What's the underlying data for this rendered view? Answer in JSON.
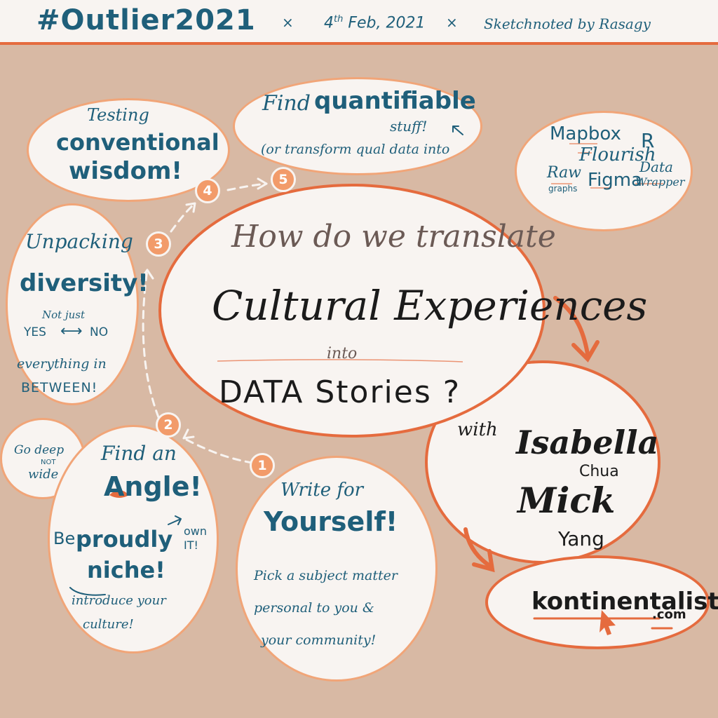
{
  "header": {
    "title": "#Outlier2021",
    "sep": "×",
    "date_day": "4",
    "date_suffix": "th",
    "date_rest": " Feb, 2021",
    "credit": "Sketchnoted by Rasagy"
  },
  "center": {
    "line1": "How do we translate",
    "line2": "Cultural Experiences",
    "line3": "into",
    "line4": "DATA Stories ?"
  },
  "steps": [
    "1",
    "2",
    "3",
    "4",
    "5"
  ],
  "testing": {
    "line1": "Testing",
    "line2": "conventional",
    "line3": "wisdom!"
  },
  "quantifiable": {
    "line1a": "Find",
    "line1b": "quantifiable",
    "line2": "stuff!",
    "line3": "(or transform qual data into"
  },
  "tools": {
    "mapbox": "Mapbox",
    "r": "R",
    "flourish": "Flourish",
    "raw": "Raw",
    "graphs": "graphs",
    "figma": "Figma",
    "data": "Data",
    "wrapper": "Wrapper"
  },
  "diversity": {
    "line1": "Unpacking",
    "line2": "diversity!",
    "line3": "Not just",
    "yes": "YES",
    "arrow": "⟷",
    "no": "NO",
    "line5": "everything in",
    "line6": "BETWEEN!"
  },
  "godeep": {
    "line1": "Go deep",
    "line2": "NOT",
    "line3": "wide"
  },
  "angle": {
    "line1": "Find an",
    "line2": "Angle!",
    "line3a": "Be",
    "line3b": "proudly",
    "line4": "niche!",
    "own1": "own",
    "own2": "IT!",
    "intro1": "introduce your",
    "intro2": "culture!"
  },
  "yourself": {
    "line1": "Write for",
    "line2": "Yourself!",
    "line3": "Pick a subject matter",
    "line4": "personal to you &",
    "line5": "your community!"
  },
  "speakers": {
    "with": "with",
    "name1": "Isabella",
    "sur1": "Chua",
    "name2": "Mick",
    "sur2": "Yang"
  },
  "site": {
    "name": "kontinentalist",
    "tld": ".com"
  },
  "colors": {
    "orange": "#e56b3e",
    "blue": "#1f5f7a",
    "bg": "#d8b9a4",
    "paper": "#f8f4f1"
  }
}
